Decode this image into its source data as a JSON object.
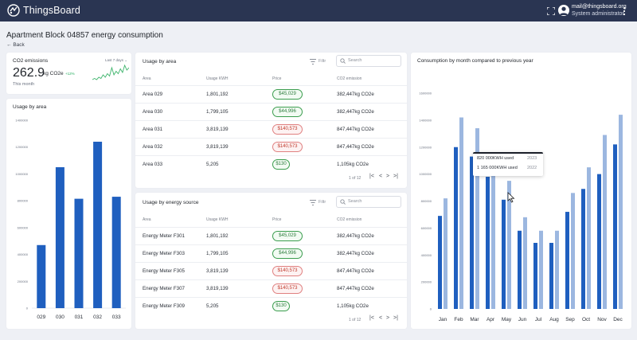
{
  "app": {
    "brand": "ThingsBoard",
    "user_email": "mail@thingsboard.org",
    "user_role": "System administrator"
  },
  "header": {
    "title": "Apartment Block 04857 energy consumption",
    "back": "Back"
  },
  "co2": {
    "title": "CO2 emissions",
    "period": "Last 7 days",
    "value": "262.9",
    "unit": "kg CO2e",
    "delta": "+12%",
    "subtitle": "This month",
    "sparkline": [
      4,
      5,
      4,
      6,
      5,
      8,
      6,
      9,
      7,
      14,
      8,
      11,
      9,
      13,
      10,
      16,
      12,
      14
    ]
  },
  "usage_by_area_chart": {
    "title": "Usage by area",
    "chart_data": {
      "type": "bar",
      "categories": [
        "029",
        "030",
        "031",
        "032",
        "033"
      ],
      "values": [
        470000,
        1050000,
        815000,
        1240000,
        830000
      ],
      "ylim": [
        0,
        1400000
      ],
      "yticks": [
        "0",
        "200000",
        "400000",
        "600000",
        "800000",
        "1000000",
        "1200000",
        "1400000"
      ],
      "color": "#1f5fbf"
    }
  },
  "table_area": {
    "title": "Usage by area",
    "filter_label": "Filtr",
    "search_placeholder": "Search",
    "columns": [
      "Area",
      "Usage KWH",
      "Price",
      "CO2 emission"
    ],
    "rows": [
      {
        "name": "Area 029",
        "usage": "1,801,192",
        "price": "$45,029",
        "status": "green",
        "co2": "382,447kg CO2e"
      },
      {
        "name": "Area 030",
        "usage": "1,799,105",
        "price": "$44,996",
        "status": "green",
        "co2": "382,447kg CO2e"
      },
      {
        "name": "Area 031",
        "usage": "3,819,139",
        "price": "$140,573",
        "status": "red",
        "co2": "847,447kg CO2e"
      },
      {
        "name": "Area 032",
        "usage": "3,819,139",
        "price": "$140,573",
        "status": "red",
        "co2": "847,447kg CO2e"
      },
      {
        "name": "Area 033",
        "usage": "5,205",
        "price": "$130",
        "status": "green",
        "co2": "1,105kg CO2e"
      }
    ],
    "pager": "1 of 12"
  },
  "table_source": {
    "title": "Usage by energy source",
    "filter_label": "Filtr",
    "search_placeholder": "Search",
    "columns": [
      "Area",
      "Usage KWH",
      "Price",
      "CO2 emission"
    ],
    "rows": [
      {
        "name": "Energy Meter F301",
        "usage": "1,801,192",
        "price": "$45,029",
        "status": "green",
        "co2": "382,447kg CO2e"
      },
      {
        "name": "Energy Meter F303",
        "usage": "1,799,105",
        "price": "$44,996",
        "status": "green",
        "co2": "382,447kg CO2e"
      },
      {
        "name": "Energy Meter F305",
        "usage": "3,819,139",
        "price": "$140,573",
        "status": "red",
        "co2": "847,447kg CO2e"
      },
      {
        "name": "Energy Meter F307",
        "usage": "3,819,139",
        "price": "$140,573",
        "status": "red",
        "co2": "847,447kg CO2e"
      },
      {
        "name": "Energy Meter F309",
        "usage": "5,205",
        "price": "$130",
        "status": "green",
        "co2": "1,105kg CO2e"
      }
    ],
    "pager": "1 of 12"
  },
  "monthly_chart": {
    "title": "Consumption by month compared to previous year",
    "tooltip": {
      "line1": "820 000KWH used",
      "year1": "2023",
      "line2": "1 165 000KWH used",
      "year2": "2022"
    },
    "chart_data": {
      "type": "bar",
      "categories": [
        "Jan",
        "Feb",
        "Mar",
        "Apr",
        "May",
        "Jun",
        "Jul",
        "Aug",
        "Sep",
        "Oct",
        "Nov",
        "Dec"
      ],
      "series": [
        {
          "values": [
            690000,
            1200000,
            1130000,
            980000,
            810000,
            580000,
            490000,
            490000,
            720000,
            890000,
            1000000,
            1220000
          ],
          "color": "#1f5fbf"
        },
        {
          "values": [
            820000,
            1420000,
            1340000,
            1040000,
            950000,
            680000,
            580000,
            580000,
            860000,
            1050000,
            1290000,
            1440000
          ],
          "color": "#9cb7e0"
        }
      ],
      "ylim": [
        0,
        1600000
      ],
      "yticks": [
        "0",
        "200000",
        "400000",
        "600000",
        "800000",
        "1000000",
        "1200000",
        "1400000",
        "1600000"
      ]
    }
  }
}
